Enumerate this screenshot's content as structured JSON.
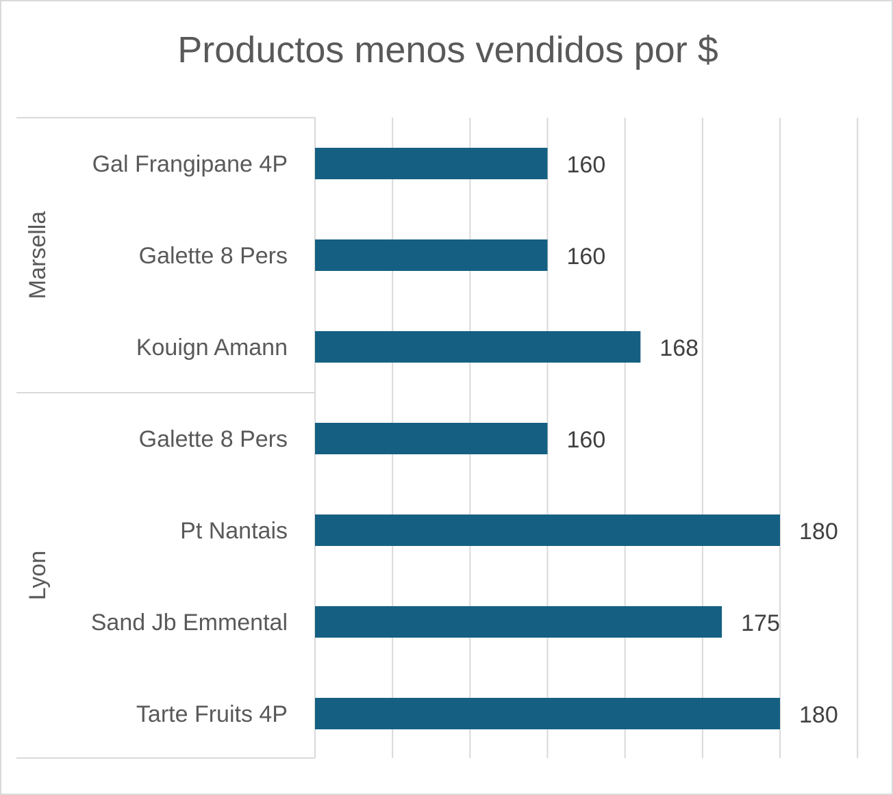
{
  "chart_data": {
    "type": "bar",
    "orientation": "horizontal",
    "title": "Productos menos vendidos por $",
    "xlim": [
      140,
      182
    ],
    "gridlines": true,
    "data_labels": true,
    "bar_color": "#156082",
    "groups": [
      {
        "name": "Marsella",
        "categories": [
          "Gal Frangipane 4P",
          "Galette 8 Pers",
          "Kouign Amann"
        ],
        "values": [
          160,
          160,
          168
        ]
      },
      {
        "name": "Lyon",
        "categories": [
          "Galette 8 Pers",
          "Pt Nantais",
          "Sand Jb Emmental",
          "Tarte Fruits 4P"
        ],
        "values": [
          160,
          180,
          175,
          180
        ]
      }
    ]
  }
}
